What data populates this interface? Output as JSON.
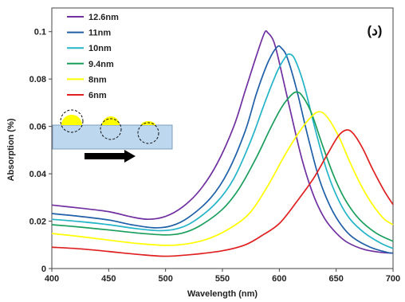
{
  "chart_data": {
    "type": "line",
    "xlabel": "Wavelength (nm)",
    "ylabel": "Absorption (%)",
    "xlim": [
      400,
      700
    ],
    "ylim": [
      0,
      0.11
    ],
    "xticks": [
      400,
      450,
      500,
      550,
      600,
      650,
      700
    ],
    "yticks": [
      0,
      0.02,
      0.04,
      0.06,
      0.08,
      0.1
    ],
    "ytick_labels": [
      "0",
      "0.02",
      "0.04",
      "0.06",
      "0.08",
      "0.1"
    ],
    "grid": "none",
    "legend_position": "top-left",
    "panel_label": "(د)",
    "series": [
      {
        "name": "12.6nm",
        "color": "#7030a0",
        "points": [
          [
            400,
            0.0268
          ],
          [
            425,
            0.0255
          ],
          [
            450,
            0.024
          ],
          [
            470,
            0.0218
          ],
          [
            485,
            0.0208
          ],
          [
            500,
            0.022
          ],
          [
            515,
            0.026
          ],
          [
            530,
            0.033
          ],
          [
            545,
            0.044
          ],
          [
            560,
            0.06
          ],
          [
            570,
            0.075
          ],
          [
            580,
            0.09
          ],
          [
            587,
            0.0995
          ],
          [
            590,
            0.0995
          ],
          [
            595,
            0.096
          ],
          [
            600,
            0.087
          ],
          [
            610,
            0.066
          ],
          [
            620,
            0.046
          ],
          [
            630,
            0.031
          ],
          [
            640,
            0.021
          ],
          [
            650,
            0.015
          ],
          [
            660,
            0.011
          ],
          [
            675,
            0.008
          ],
          [
            690,
            0.0068
          ],
          [
            700,
            0.0065
          ]
        ]
      },
      {
        "name": "11nm",
        "color": "#1f5fa8",
        "points": [
          [
            400,
            0.0232
          ],
          [
            425,
            0.022
          ],
          [
            450,
            0.0205
          ],
          [
            470,
            0.0185
          ],
          [
            490,
            0.0172
          ],
          [
            505,
            0.018
          ],
          [
            520,
            0.0215
          ],
          [
            540,
            0.03
          ],
          [
            555,
            0.041
          ],
          [
            570,
            0.058
          ],
          [
            580,
            0.074
          ],
          [
            590,
            0.087
          ],
          [
            598,
            0.0935
          ],
          [
            602,
            0.093
          ],
          [
            607,
            0.089
          ],
          [
            615,
            0.076
          ],
          [
            625,
            0.056
          ],
          [
            635,
            0.038
          ],
          [
            645,
            0.026
          ],
          [
            655,
            0.018
          ],
          [
            665,
            0.013
          ],
          [
            680,
            0.009
          ],
          [
            695,
            0.0068
          ],
          [
            700,
            0.0065
          ]
        ]
      },
      {
        "name": "10nm",
        "color": "#24b4c8",
        "points": [
          [
            400,
            0.0208
          ],
          [
            425,
            0.0198
          ],
          [
            450,
            0.0185
          ],
          [
            475,
            0.0168
          ],
          [
            495,
            0.016
          ],
          [
            510,
            0.0168
          ],
          [
            525,
            0.02
          ],
          [
            545,
            0.028
          ],
          [
            560,
            0.038
          ],
          [
            575,
            0.054
          ],
          [
            588,
            0.071
          ],
          [
            598,
            0.083
          ],
          [
            605,
            0.089
          ],
          [
            609,
            0.0905
          ],
          [
            614,
            0.088
          ],
          [
            622,
            0.077
          ],
          [
            632,
            0.058
          ],
          [
            642,
            0.041
          ],
          [
            652,
            0.029
          ],
          [
            662,
            0.021
          ],
          [
            675,
            0.015
          ],
          [
            690,
            0.0105
          ],
          [
            700,
            0.0085
          ]
        ]
      },
      {
        "name": "9.4nm",
        "color": "#1a9e5c",
        "points": [
          [
            400,
            0.0185
          ],
          [
            425,
            0.0175
          ],
          [
            450,
            0.0163
          ],
          [
            475,
            0.015
          ],
          [
            500,
            0.0142
          ],
          [
            515,
            0.015
          ],
          [
            530,
            0.018
          ],
          [
            550,
            0.025
          ],
          [
            565,
            0.034
          ],
          [
            580,
            0.047
          ],
          [
            592,
            0.059
          ],
          [
            602,
            0.068
          ],
          [
            610,
            0.073
          ],
          [
            615,
            0.0745
          ],
          [
            620,
            0.073
          ],
          [
            628,
            0.066
          ],
          [
            638,
            0.052
          ],
          [
            648,
            0.039
          ],
          [
            658,
            0.029
          ],
          [
            670,
            0.021
          ],
          [
            685,
            0.015
          ],
          [
            700,
            0.0115
          ]
        ]
      },
      {
        "name": "8nm",
        "color": "#ffff00",
        "points": [
          [
            400,
            0.0148
          ],
          [
            425,
            0.0135
          ],
          [
            450,
            0.012
          ],
          [
            475,
            0.0106
          ],
          [
            500,
            0.0098
          ],
          [
            520,
            0.0105
          ],
          [
            540,
            0.013
          ],
          [
            560,
            0.018
          ],
          [
            575,
            0.024
          ],
          [
            590,
            0.035
          ],
          [
            605,
            0.048
          ],
          [
            618,
            0.058
          ],
          [
            628,
            0.064
          ],
          [
            635,
            0.0662
          ],
          [
            642,
            0.064
          ],
          [
            652,
            0.056
          ],
          [
            662,
            0.045
          ],
          [
            672,
            0.035
          ],
          [
            682,
            0.027
          ],
          [
            692,
            0.021
          ],
          [
            700,
            0.0185
          ]
        ]
      },
      {
        "name": "6nm",
        "color": "#e02020",
        "points": [
          [
            400,
            0.009
          ],
          [
            425,
            0.0083
          ],
          [
            450,
            0.0072
          ],
          [
            475,
            0.006
          ],
          [
            500,
            0.0052
          ],
          [
            525,
            0.006
          ],
          [
            550,
            0.0075
          ],
          [
            570,
            0.01
          ],
          [
            585,
            0.014
          ],
          [
            600,
            0.019
          ],
          [
            615,
            0.028
          ],
          [
            630,
            0.038
          ],
          [
            642,
            0.048
          ],
          [
            652,
            0.056
          ],
          [
            659,
            0.0585
          ],
          [
            665,
            0.057
          ],
          [
            673,
            0.051
          ],
          [
            682,
            0.042
          ],
          [
            692,
            0.033
          ],
          [
            700,
            0.027
          ]
        ]
      }
    ]
  }
}
